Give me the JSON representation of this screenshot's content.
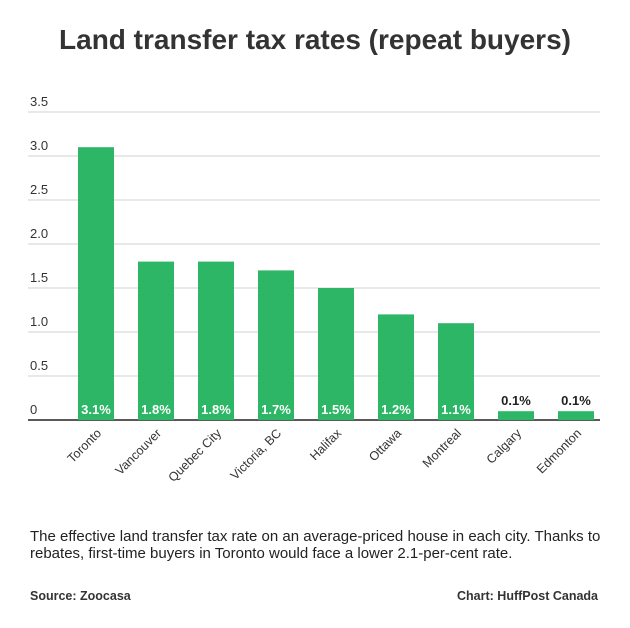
{
  "chart_data": {
    "type": "bar",
    "title": "Land transfer tax rates (repeat buyers)",
    "categories": [
      "Toronto",
      "Vancouver",
      "Quebec City",
      "Victoria, BC",
      "Halifax",
      "Ottawa",
      "Montreal",
      "Calgary",
      "Edmonton"
    ],
    "values": [
      3.1,
      1.8,
      1.8,
      1.7,
      1.5,
      1.2,
      1.1,
      0.1,
      0.1
    ],
    "data_labels": [
      "3.1%",
      "1.8%",
      "1.8%",
      "1.7%",
      "1.5%",
      "1.2%",
      "1.1%",
      "0.1%",
      "0.1%"
    ],
    "y_ticks": [
      "0",
      "0.5",
      "1.0",
      "1.5",
      "2.0",
      "2.5",
      "3.0",
      "3.5"
    ],
    "ylim": [
      0,
      3.5
    ],
    "grid": true,
    "bar_color": "#2db665",
    "grid_color": "#d0d0d0"
  },
  "caption": "The effective land transfer tax rate on an average-priced house in each city. Thanks to rebates, first-time buyers in Toronto would face a lower 2.1-per-cent rate.",
  "source": "Source: Zoocasa",
  "credit": "Chart: HuffPost Canada"
}
